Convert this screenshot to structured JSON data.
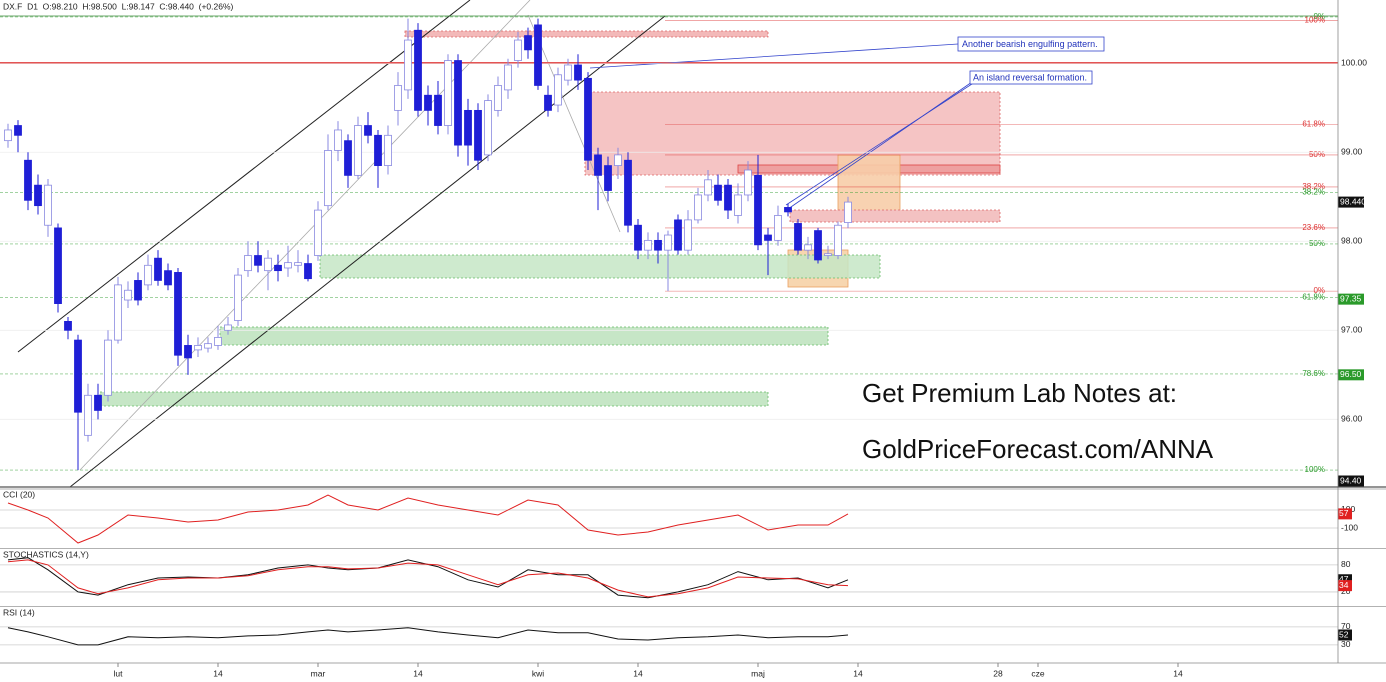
{
  "header": {
    "symbol_line": "DX.F  D1  O:98.210  H:98.500  L:98.147  C:98.440  (+0.26%)"
  },
  "annotations": [
    "Another bearish engulfing pattern.",
    "An island reversal formation."
  ],
  "watermark": [
    "Get Premium Lab Notes at:",
    "GoldPriceForecast.com/ANNA"
  ],
  "chart_data": [
    {
      "type": "candlestick",
      "color_down": "#1f1fd6",
      "color_up": "#ffffff",
      "x": [
        0,
        1,
        2,
        3,
        4,
        5,
        6,
        7,
        8,
        9,
        10,
        11,
        12,
        13,
        14,
        15,
        16,
        17,
        18,
        19,
        20,
        21,
        22,
        23,
        24,
        25,
        26,
        27,
        28,
        29,
        30,
        31,
        32,
        33,
        34,
        35,
        36,
        37,
        38,
        39,
        40,
        41,
        42,
        43,
        44,
        45,
        46,
        47,
        48,
        49,
        50,
        51,
        52,
        53,
        54,
        55,
        56,
        57,
        58,
        59,
        60,
        61,
        62,
        63,
        64,
        65,
        66,
        67,
        68,
        69,
        70,
        71,
        72,
        73,
        74,
        75,
        76,
        77,
        78,
        79,
        80,
        81,
        82,
        83,
        84
      ],
      "ohlc": [
        [
          99.13,
          99.32,
          99.05,
          99.25
        ],
        [
          99.3,
          99.36,
          99.0,
          99.19
        ],
        [
          98.91,
          99.0,
          98.35,
          98.46
        ],
        [
          98.63,
          98.75,
          98.3,
          98.4
        ],
        [
          98.18,
          98.7,
          98.05,
          98.63
        ],
        [
          98.15,
          98.2,
          97.2,
          97.3
        ],
        [
          97.1,
          97.15,
          96.9,
          97.0
        ],
        [
          96.89,
          96.95,
          95.43,
          96.08
        ],
        [
          95.82,
          96.4,
          95.75,
          96.27
        ],
        [
          96.27,
          96.4,
          96.0,
          96.1
        ],
        [
          96.27,
          97.0,
          96.2,
          96.89
        ],
        [
          96.89,
          97.6,
          96.85,
          97.51
        ],
        [
          97.34,
          97.55,
          97.25,
          97.45
        ],
        [
          97.56,
          97.65,
          97.28,
          97.34
        ],
        [
          97.51,
          97.85,
          97.45,
          97.73
        ],
        [
          97.81,
          97.9,
          97.5,
          97.56
        ],
        [
          97.67,
          97.75,
          97.45,
          97.51
        ],
        [
          97.65,
          97.7,
          96.6,
          96.72
        ],
        [
          96.83,
          96.95,
          96.5,
          96.69
        ],
        [
          96.78,
          96.92,
          96.7,
          96.83
        ],
        [
          96.8,
          96.92,
          96.75,
          96.85
        ],
        [
          96.83,
          97.05,
          96.78,
          96.92
        ],
        [
          97.0,
          97.15,
          96.95,
          97.06
        ],
        [
          97.11,
          97.7,
          97.05,
          97.62
        ],
        [
          97.67,
          98.0,
          97.6,
          97.84
        ],
        [
          97.84,
          98.0,
          97.65,
          97.73
        ],
        [
          97.67,
          97.9,
          97.45,
          97.81
        ],
        [
          97.73,
          97.85,
          97.55,
          97.67
        ],
        [
          97.7,
          97.95,
          97.6,
          97.76
        ],
        [
          97.73,
          97.9,
          97.65,
          97.76
        ],
        [
          97.75,
          97.85,
          97.55,
          97.58
        ],
        [
          97.84,
          98.45,
          97.78,
          98.35
        ],
        [
          98.4,
          99.2,
          98.35,
          99.02
        ],
        [
          99.02,
          99.35,
          98.9,
          99.25
        ],
        [
          99.13,
          99.2,
          98.6,
          98.74
        ],
        [
          98.74,
          99.4,
          98.7,
          99.3
        ],
        [
          99.3,
          99.45,
          99.1,
          99.19
        ],
        [
          99.19,
          99.25,
          98.6,
          98.85
        ],
        [
          98.85,
          99.3,
          98.75,
          99.19
        ],
        [
          99.47,
          99.9,
          99.3,
          99.75
        ],
        [
          99.7,
          100.5,
          99.6,
          100.26
        ],
        [
          100.37,
          100.45,
          99.4,
          99.47
        ],
        [
          99.64,
          99.75,
          99.3,
          99.47
        ],
        [
          99.64,
          99.8,
          99.2,
          99.3
        ],
        [
          99.3,
          100.1,
          99.2,
          100.03
        ],
        [
          100.03,
          100.1,
          98.95,
          99.08
        ],
        [
          99.47,
          99.6,
          98.85,
          99.08
        ],
        [
          99.47,
          99.55,
          98.8,
          98.91
        ],
        [
          98.97,
          99.65,
          98.9,
          99.58
        ],
        [
          99.47,
          99.85,
          99.4,
          99.75
        ],
        [
          99.7,
          100.05,
          99.6,
          99.98
        ],
        [
          100.03,
          100.35,
          99.95,
          100.26
        ],
        [
          100.31,
          100.4,
          100.05,
          100.15
        ],
        [
          100.43,
          100.5,
          99.7,
          99.75
        ],
        [
          99.64,
          99.75,
          99.4,
          99.47
        ],
        [
          99.53,
          99.95,
          99.45,
          99.87
        ],
        [
          99.81,
          100.05,
          99.75,
          99.98
        ],
        [
          99.98,
          100.1,
          99.7,
          99.81
        ],
        [
          99.83,
          99.9,
          98.8,
          98.91
        ],
        [
          98.97,
          99.05,
          98.35,
          98.74
        ],
        [
          98.85,
          98.95,
          98.45,
          98.57
        ],
        [
          98.85,
          99.05,
          98.7,
          98.97
        ],
        [
          98.91,
          99.0,
          98.1,
          98.18
        ],
        [
          98.18,
          98.25,
          97.8,
          97.9
        ],
        [
          97.9,
          98.1,
          97.8,
          98.01
        ],
        [
          98.01,
          98.1,
          97.75,
          97.9
        ],
        [
          97.9,
          98.12,
          97.44,
          98.07
        ],
        [
          98.24,
          98.3,
          97.85,
          97.9
        ],
        [
          97.9,
          98.35,
          97.85,
          98.24
        ],
        [
          98.24,
          98.6,
          98.2,
          98.52
        ],
        [
          98.52,
          98.8,
          98.45,
          98.69
        ],
        [
          98.63,
          98.75,
          98.4,
          98.46
        ],
        [
          98.63,
          98.7,
          98.25,
          98.35
        ],
        [
          98.29,
          98.65,
          98.2,
          98.52
        ],
        [
          98.52,
          98.9,
          98.45,
          98.8
        ],
        [
          98.74,
          98.97,
          97.9,
          97.96
        ],
        [
          98.07,
          98.15,
          97.62,
          98.01
        ],
        [
          98.01,
          98.4,
          97.95,
          98.29
        ],
        [
          98.38,
          98.42,
          98.28,
          98.33
        ],
        [
          98.2,
          98.25,
          97.85,
          97.9
        ],
        [
          97.9,
          98.05,
          97.8,
          97.96
        ],
        [
          98.12,
          98.15,
          97.75,
          97.79
        ],
        [
          97.84,
          97.95,
          97.8,
          97.86
        ],
        [
          97.84,
          98.22,
          97.8,
          98.18
        ],
        [
          98.21,
          98.5,
          98.147,
          98.44
        ]
      ],
      "xlim": [
        -0.8,
        133
      ],
      "xticks": [
        {
          "value": 11,
          "label": "lut"
        },
        {
          "value": 21,
          "label": "14"
        },
        {
          "value": 31,
          "label": "mar"
        },
        {
          "value": 41,
          "label": "14"
        },
        {
          "value": 53,
          "label": "kwi"
        },
        {
          "value": 63,
          "label": "14"
        },
        {
          "value": 75,
          "label": "maj"
        },
        {
          "value": 85,
          "label": "14"
        },
        {
          "value": 99,
          "label": "28"
        },
        {
          "value": 103,
          "label": "cze"
        },
        {
          "value": 117,
          "label": "14"
        }
      ],
      "ylim": [
        95.24,
        100.62
      ],
      "yticks": [
        {
          "value": 96,
          "label": "96.00"
        },
        {
          "value": 97,
          "label": "97.00"
        },
        {
          "value": 98,
          "label": "98.00"
        },
        {
          "value": 99,
          "label": "99.00"
        },
        {
          "value": 100,
          "label": "100.00"
        }
      ],
      "grid": true,
      "levels": [
        {
          "label": "0%",
          "value": 100.52,
          "color": "#2a9a2a"
        },
        {
          "label": "100%",
          "value": 100.48,
          "color": "#d33"
        },
        {
          "label": "61.8%",
          "value": 99.31,
          "color": "#d33"
        },
        {
          "label": "50%",
          "value": 98.97,
          "color": "#d33"
        },
        {
          "label": "38.2%",
          "value": 98.61,
          "color": "#d33"
        },
        {
          "label": "38.2%",
          "value": 98.55,
          "color": "#2a9a2a"
        },
        {
          "label": "23.6%",
          "value": 98.15,
          "color": "#d33"
        },
        {
          "label": "50%",
          "value": 97.97,
          "color": "#2a9a2a"
        },
        {
          "label": "0%",
          "value": 97.44,
          "color": "#d33"
        },
        {
          "label": "61.8%",
          "value": 97.37,
          "color": "#2a9a2a"
        },
        {
          "label": "78.6%",
          "value": 96.51,
          "color": "#2a9a2a"
        },
        {
          "label": "100%",
          "value": 95.43,
          "color": "#2a9a2a"
        }
      ],
      "price_markers": [
        {
          "value": 98.44,
          "label": "98.440",
          "color": "#111"
        },
        {
          "value": 97.35,
          "label": "97.35",
          "color": "#2a9a2a"
        },
        {
          "value": 96.5,
          "label": "96.50",
          "color": "#2a9a2a"
        },
        {
          "value": 94.4,
          "label": "94.40",
          "color": "#111"
        }
      ]
    },
    {
      "type": "line",
      "title": "CCI (20)",
      "x": [
        0,
        2,
        4,
        7,
        9,
        12,
        15,
        18,
        21,
        24,
        27,
        30,
        32,
        34,
        37,
        40,
        43,
        46,
        49,
        52,
        55,
        58,
        61,
        64,
        67,
        70,
        73,
        76,
        79,
        82,
        84
      ],
      "series": [
        {
          "name": "CCI",
          "color": "#e02020",
          "values": [
            178,
            100,
            11,
            -267,
            -178,
            44,
            11,
            -33,
            -11,
            78,
            100,
            156,
            267,
            156,
            100,
            233,
            156,
            100,
            44,
            211,
            156,
            -122,
            -178,
            -144,
            -67,
            -11,
            44,
            -122,
            -67,
            -67,
            57
          ]
        }
      ],
      "ylim": [
        -322,
        322
      ],
      "yticks": [
        100,
        -100
      ]
    },
    {
      "type": "line",
      "title": "STOCHASTICS (14,Y)",
      "x": [
        0,
        2,
        4,
        7,
        9,
        12,
        15,
        18,
        21,
        24,
        27,
        30,
        32,
        34,
        37,
        40,
        43,
        46,
        49,
        52,
        55,
        58,
        61,
        64,
        67,
        70,
        73,
        76,
        79,
        82,
        84
      ],
      "series": [
        {
          "name": "%K",
          "color": "#111111",
          "values": [
            91,
            96,
            69,
            20,
            13,
            36,
            51,
            53,
            51,
            58,
            73,
            80,
            73,
            69,
            73,
            91,
            76,
            47,
            31,
            69,
            58,
            58,
            13,
            7,
            20,
            36,
            65,
            47,
            51,
            29,
            47
          ]
        },
        {
          "name": "%D",
          "color": "#e02020",
          "values": [
            87,
            91,
            80,
            29,
            16,
            29,
            47,
            51,
            51,
            56,
            69,
            76,
            76,
            71,
            73,
            84,
            80,
            58,
            36,
            58,
            62,
            51,
            24,
            9,
            16,
            29,
            53,
            51,
            49,
            36,
            34
          ]
        }
      ],
      "ylim": [
        -9,
        113
      ],
      "yticks": [
        80,
        20
      ]
    },
    {
      "type": "line",
      "title": "RSI (14)",
      "x": [
        0,
        2,
        4,
        7,
        9,
        12,
        15,
        18,
        21,
        24,
        27,
        30,
        32,
        34,
        37,
        40,
        43,
        46,
        49,
        52,
        55,
        58,
        61,
        64,
        67,
        70,
        73,
        76,
        79,
        82,
        84
      ],
      "series": [
        {
          "name": "RSI",
          "color": "#111111",
          "values": [
            68,
            59,
            48,
            30,
            30,
            48,
            46,
            48,
            46,
            50,
            52,
            59,
            63,
            59,
            63,
            68,
            59,
            52,
            46,
            63,
            57,
            57,
            43,
            41,
            46,
            48,
            52,
            46,
            48,
            48,
            52
          ]
        }
      ],
      "ylim": [
        -8,
        112
      ],
      "yticks": [
        70,
        30
      ]
    }
  ]
}
